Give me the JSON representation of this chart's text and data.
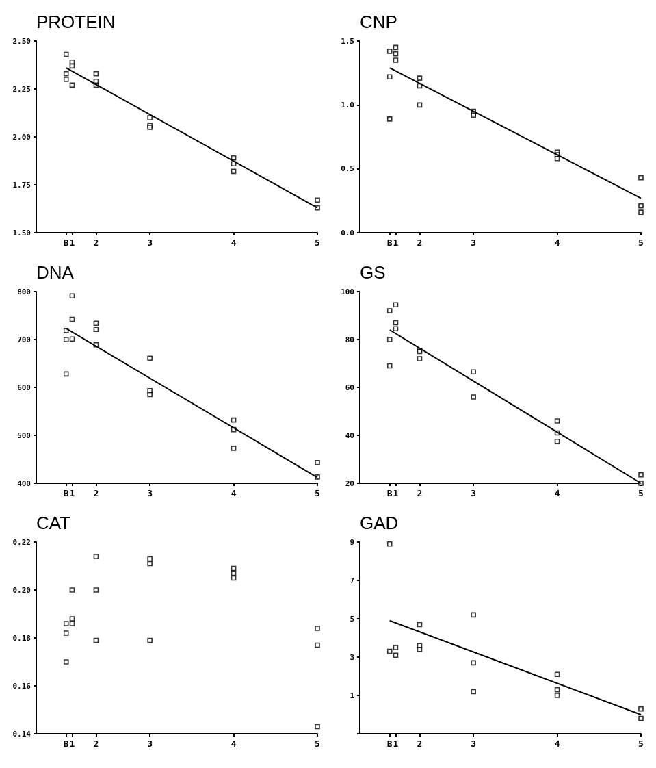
{
  "chart_data": [
    {
      "type": "scatter",
      "title": "PROTEIN",
      "marker": "square",
      "categories": [
        null,
        null,
        null,
        null,
        null,
        "B",
        "1",
        null,
        null,
        null,
        "2",
        null,
        null,
        null,
        null,
        null,
        null,
        null,
        null,
        "3",
        null,
        null,
        null,
        null,
        null,
        null,
        null,
        null,
        null,
        null,
        null,
        null,
        null,
        "4",
        null,
        null,
        null,
        null,
        null,
        null,
        null,
        null,
        null,
        null,
        null,
        null,
        null,
        "5"
      ],
      "ylim": [
        1.5,
        2.5
      ],
      "yticks": [
        {
          "value": 1.5,
          "label": "1.50"
        },
        1.75,
        {
          "value": 2,
          "label": "2.00"
        },
        2.25,
        {
          "value": 2.5,
          "label": "2.50"
        }
      ],
      "series": [
        {
          "color": "#000000",
          "x": [
            "B",
            "B",
            "B",
            "1",
            "1",
            "1",
            "2",
            "2",
            "2",
            "3",
            "3",
            "3",
            "4",
            "4",
            "4",
            "5",
            "5"
          ],
          "values": [
            2.43,
            2.33,
            2.3,
            2.39,
            2.37,
            2.27,
            2.33,
            2.29,
            2.27,
            2.1,
            2.06,
            2.05,
            1.89,
            1.86,
            1.82,
            1.67,
            1.63
          ]
        },
        {
          "type": "line",
          "color": "#000000",
          "marker": "none",
          "x": [
            "B",
            "5"
          ],
          "values": [
            2.36,
            1.63
          ]
        }
      ]
    },
    {
      "type": "scatter",
      "title": "CNP",
      "marker": "square",
      "categories": [
        null,
        null,
        null,
        null,
        null,
        "B",
        "1",
        null,
        null,
        null,
        "2",
        null,
        null,
        null,
        null,
        null,
        null,
        null,
        null,
        "3",
        null,
        null,
        null,
        null,
        null,
        null,
        null,
        null,
        null,
        null,
        null,
        null,
        null,
        "4",
        null,
        null,
        null,
        null,
        null,
        null,
        null,
        null,
        null,
        null,
        null,
        null,
        null,
        "5"
      ],
      "ylim": [
        0,
        1.5
      ],
      "yticks": [
        {
          "value": 0,
          "label": "0.0"
        },
        0.5,
        {
          "value": 1,
          "label": "1.0"
        },
        1.5
      ],
      "series": [
        {
          "color": "#000000",
          "x": [
            "B",
            "B",
            "B",
            "1",
            "1",
            "1",
            "2",
            "2",
            "2",
            "3",
            "3",
            "3",
            "4",
            "4",
            "4",
            "5",
            "5",
            "5"
          ],
          "values": [
            1.42,
            1.22,
            0.89,
            1.45,
            1.4,
            1.35,
            1.21,
            1.15,
            1.0,
            0.95,
            0.93,
            0.92,
            0.63,
            0.61,
            0.58,
            0.43,
            0.21,
            0.16
          ]
        },
        {
          "type": "line",
          "color": "#000000",
          "marker": "none",
          "x": [
            "B",
            "5"
          ],
          "values": [
            1.29,
            0.27
          ]
        }
      ]
    },
    {
      "type": "scatter",
      "title": "DNA",
      "marker": "square",
      "categories": [
        null,
        null,
        null,
        null,
        null,
        "B",
        "1",
        null,
        null,
        null,
        "2",
        null,
        null,
        null,
        null,
        null,
        null,
        null,
        null,
        "3",
        null,
        null,
        null,
        null,
        null,
        null,
        null,
        null,
        null,
        null,
        null,
        null,
        null,
        "4",
        null,
        null,
        null,
        null,
        null,
        null,
        null,
        null,
        null,
        null,
        null,
        null,
        null,
        "5"
      ],
      "ylim": [
        400,
        800
      ],
      "yticks": [
        400,
        500,
        600,
        700,
        800
      ],
      "series": [
        {
          "color": "#000000",
          "x": [
            "B",
            "B",
            "B",
            "1",
            "1",
            "1",
            "2",
            "2",
            "2",
            "3",
            "3",
            "3",
            "4",
            "4",
            "4",
            "5",
            "5"
          ],
          "values": [
            719,
            700,
            628,
            791,
            742,
            701,
            734,
            721,
            689,
            661,
            593,
            585,
            532,
            512,
            473,
            443,
            413
          ]
        },
        {
          "type": "line",
          "color": "#000000",
          "marker": "none",
          "x": [
            "B",
            "5"
          ],
          "values": [
            723,
            412
          ]
        }
      ]
    },
    {
      "type": "scatter",
      "title": "GS",
      "marker": "square",
      "categories": [
        null,
        null,
        null,
        null,
        null,
        "B",
        "1",
        null,
        null,
        null,
        "2",
        null,
        null,
        null,
        null,
        null,
        null,
        null,
        null,
        "3",
        null,
        null,
        null,
        null,
        null,
        null,
        null,
        null,
        null,
        null,
        null,
        null,
        null,
        "4",
        null,
        null,
        null,
        null,
        null,
        null,
        null,
        null,
        null,
        null,
        null,
        null,
        null,
        "5"
      ],
      "ylim": [
        20,
        100
      ],
      "yticks": [
        20,
        40,
        60,
        80,
        100
      ],
      "series": [
        {
          "color": "#000000",
          "x": [
            "B",
            "B",
            "B",
            "1",
            "1",
            "1",
            "2",
            "2",
            "2",
            "3",
            "3",
            "4",
            "4",
            "4",
            "5",
            "5"
          ],
          "values": [
            92,
            80,
            69,
            94.5,
            87,
            84.5,
            75.5,
            75,
            72,
            66.5,
            56,
            46,
            41,
            37.5,
            23.5,
            20
          ]
        },
        {
          "type": "line",
          "color": "#000000",
          "marker": "none",
          "x": [
            "B",
            "5"
          ],
          "values": [
            84,
            20
          ]
        }
      ]
    },
    {
      "type": "scatter",
      "title": "CAT",
      "marker": "square",
      "categories": [
        null,
        null,
        null,
        null,
        null,
        "B",
        "1",
        null,
        null,
        null,
        "2",
        null,
        null,
        null,
        null,
        null,
        null,
        null,
        null,
        "3",
        null,
        null,
        null,
        null,
        null,
        null,
        null,
        null,
        null,
        null,
        null,
        null,
        null,
        "4",
        null,
        null,
        null,
        null,
        null,
        null,
        null,
        null,
        null,
        null,
        null,
        null,
        null,
        "5"
      ],
      "ylim": [
        0.14,
        0.22
      ],
      "yticks": [
        0.14,
        0.16,
        0.18,
        {
          "value": 0.2,
          "label": "0.20"
        },
        0.22
      ],
      "series": [
        {
          "color": "#000000",
          "x": [
            "B",
            "B",
            "B",
            "1",
            "1",
            "1",
            "2",
            "2",
            "2",
            "3",
            "3",
            "3",
            "4",
            "4",
            "4",
            "5",
            "5",
            "5"
          ],
          "values": [
            0.186,
            0.182,
            0.17,
            0.2,
            0.188,
            0.186,
            0.214,
            0.2,
            0.179,
            0.213,
            0.211,
            0.179,
            0.209,
            0.207,
            0.205,
            0.184,
            0.177,
            0.143
          ]
        }
      ]
    },
    {
      "type": "scatter",
      "title": "GAD",
      "marker": "square",
      "categories": [
        null,
        null,
        null,
        null,
        null,
        "B",
        "1",
        null,
        null,
        null,
        "2",
        null,
        null,
        null,
        null,
        null,
        null,
        null,
        null,
        "3",
        null,
        null,
        null,
        null,
        null,
        null,
        null,
        null,
        null,
        null,
        null,
        null,
        null,
        "4",
        null,
        null,
        null,
        null,
        null,
        null,
        null,
        null,
        null,
        null,
        null,
        null,
        null,
        "5"
      ],
      "ylim": [
        -1,
        9
      ],
      "yticks": [
        {
          "value": -1,
          "label": null
        },
        1,
        3,
        5,
        7,
        9
      ],
      "series": [
        {
          "color": "#000000",
          "x": [
            "B",
            "B",
            "1",
            "1",
            "2",
            "2",
            "2",
            "3",
            "3",
            "3",
            "4",
            "4",
            "4",
            "5",
            "5"
          ],
          "values": [
            8.9,
            3.3,
            3.5,
            3.1,
            4.7,
            3.6,
            3.4,
            5.2,
            2.7,
            1.2,
            2.1,
            1.3,
            1.0,
            0.3,
            -0.2
          ]
        },
        {
          "type": "line",
          "color": "#000000",
          "marker": "none",
          "x": [
            "B",
            "5"
          ],
          "values": [
            4.9,
            0
          ]
        }
      ]
    }
  ]
}
